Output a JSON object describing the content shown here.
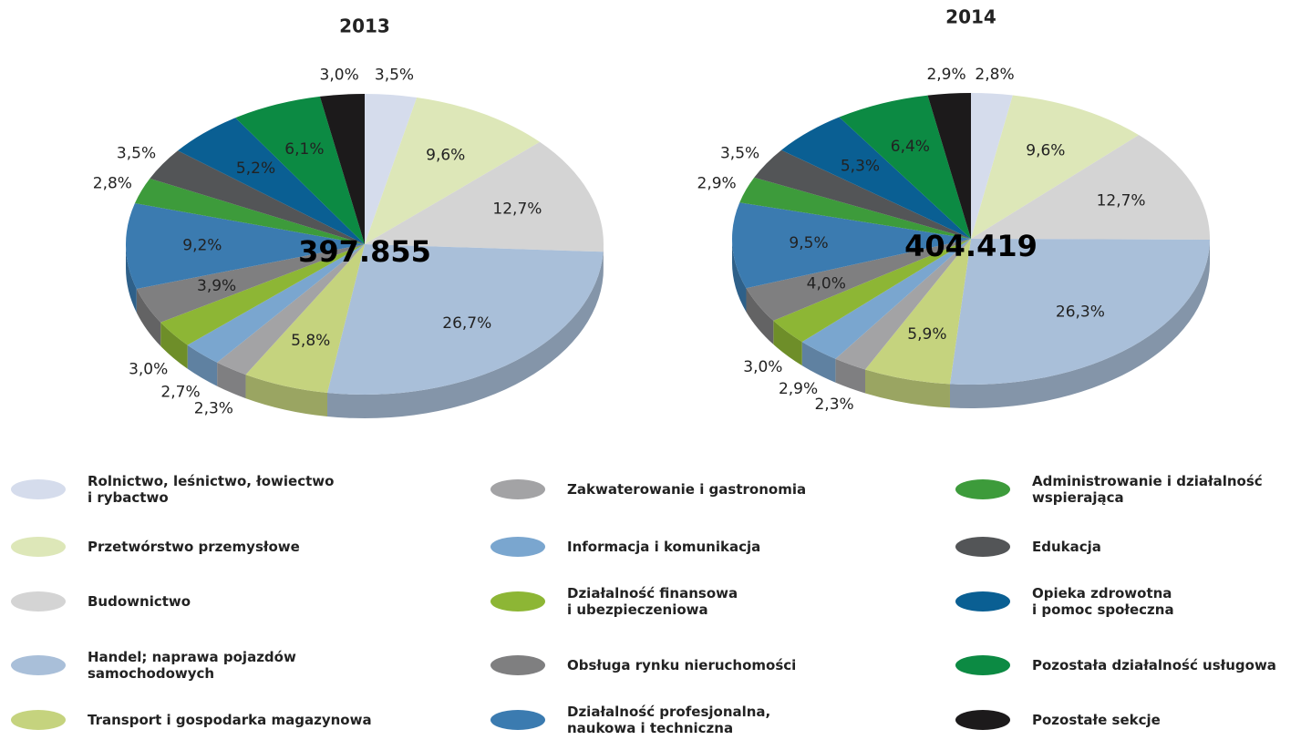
{
  "chart_data": [
    {
      "type": "pie",
      "title": "2013",
      "total": 397855,
      "total_label": "397.855",
      "categories": [
        "Rolnictwo, leśnictwo, łowiectwo\ni rybactwo",
        "Przetwórstwo przemysłowe",
        "Budownictwo",
        "Handel; naprawa pojazdów\nsamochodowych",
        "Transport i gospodarka magazynowa",
        "Zakwaterowanie i gastronomia",
        "Informacja i komunikacja",
        "Działalność finansowa\ni ubezpieczeniowa",
        "Obsługa rynku nieruchomości",
        "Działalność profesjonalna,\nnaukowa i techniczna",
        "Administrowanie i działalność\nwspierająca",
        "Edukacja",
        "Opieka zdrowotna\ni pomoc społeczna",
        "Pozostała działalność usługowa",
        "Pozostałe sekcje"
      ],
      "values": [
        3.5,
        9.6,
        12.7,
        26.7,
        5.8,
        2.3,
        2.7,
        3.0,
        3.9,
        9.2,
        2.8,
        3.5,
        5.2,
        6.1,
        3.0
      ],
      "value_labels": [
        "3,5%",
        "9,6%",
        "12,7%",
        "26,7%",
        "5,8%",
        "2,3%",
        "2,7%",
        "3,0%",
        "3,9%",
        "9,2%",
        "2,8%",
        "3,5%",
        "5,2%",
        "6,1%",
        "3,0%"
      ],
      "colors": [
        "#d5dcec",
        "#dde7b8",
        "#d4d4d4",
        "#a9bfd9",
        "#c5d37e",
        "#a3a3a5",
        "#7aa6cf",
        "#8db635",
        "#7f7f80",
        "#3b7bb0",
        "#3d9b3b",
        "#535557",
        "#0a5f93",
        "#0c8a43",
        "#1c1a1b"
      ]
    },
    {
      "type": "pie",
      "title": "2014",
      "total": 404419,
      "total_label": "404.419",
      "categories": [
        "Rolnictwo, leśnictwo, łowiectwo\ni rybactwo",
        "Przetwórstwo przemysłowe",
        "Budownictwo",
        "Handel; naprawa pojazdów\nsamochodowych",
        "Transport i gospodarka magazynowa",
        "Zakwaterowanie i gastronomia",
        "Informacja i komunikacja",
        "Działalność finansowa\ni ubezpieczeniowa",
        "Obsługa rynku nieruchomości",
        "Działalność profesjonalna,\nnaukowa i techniczna",
        "Administrowanie i działalność\nwspierająca",
        "Edukacja",
        "Opieka zdrowotna\ni pomoc społeczna",
        "Pozostała działalność usługowa",
        "Pozostałe sekcje"
      ],
      "values": [
        2.8,
        9.6,
        12.7,
        26.3,
        5.9,
        2.3,
        2.9,
        3.0,
        4.0,
        9.5,
        2.9,
        3.5,
        5.3,
        6.4,
        2.9
      ],
      "value_labels": [
        "2,8%",
        "9,6%",
        "12,7%",
        "26,3%",
        "5,9%",
        "2,3%",
        "2,9%",
        "3,0%",
        "4,0%",
        "9,5%",
        "2,9%",
        "3,5%",
        "5,3%",
        "6,4%",
        "2,9%"
      ],
      "colors": [
        "#d5dcec",
        "#dde7b8",
        "#d4d4d4",
        "#a9bfd9",
        "#c5d37e",
        "#a3a3a5",
        "#7aa6cf",
        "#8db635",
        "#7f7f80",
        "#3b7bb0",
        "#3d9b3b",
        "#535557",
        "#0a5f93",
        "#0c8a43",
        "#1c1a1b"
      ]
    }
  ]
}
